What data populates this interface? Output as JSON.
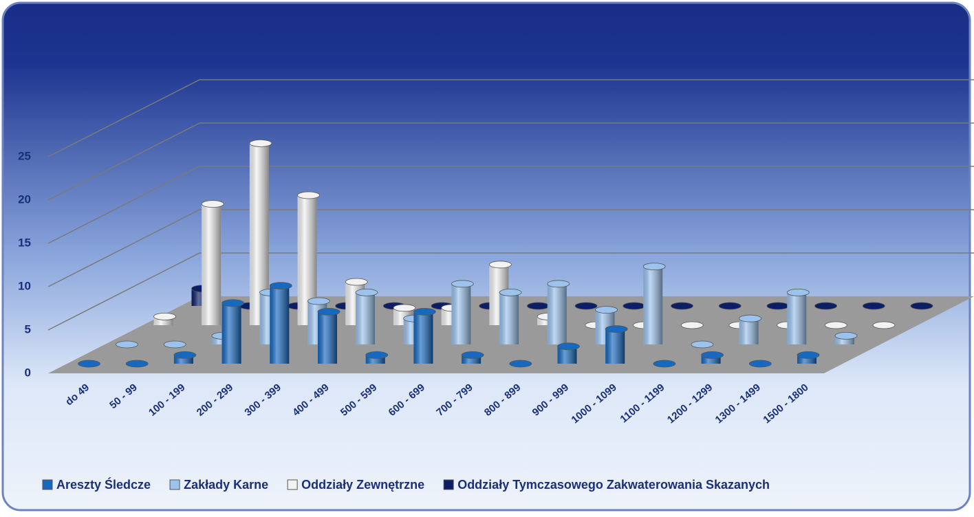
{
  "chart_data": {
    "type": "bar3d",
    "categories": [
      "do 49",
      "50 - 99",
      "100 - 199",
      "200 - 299",
      "300 - 399",
      "400 - 499",
      "500 - 599",
      "600 - 699",
      "700 - 799",
      "800 - 899",
      "900 - 999",
      "1000 - 1099",
      "1100 - 1199",
      "1200 - 1299",
      "1300 - 1499",
      "1500 - 1800"
    ],
    "series": [
      {
        "name": "Areszty Śledcze",
        "color": "#1769c0",
        "values": [
          0,
          0,
          1,
          7,
          9,
          6,
          1,
          6,
          1,
          0,
          2,
          4,
          0,
          1,
          0,
          1
        ]
      },
      {
        "name": "Zakłady Karne",
        "color": "#9cc3ee",
        "values": [
          0,
          0,
          1,
          6,
          5,
          6,
          3,
          7,
          6,
          7,
          4,
          9,
          0,
          3,
          6,
          1
        ]
      },
      {
        "name": "Oddziały Zewnętrzne",
        "color": "#f2f2f2",
        "values": [
          1,
          14,
          21,
          15,
          5,
          2,
          2,
          7,
          1,
          0,
          0,
          0,
          0,
          0,
          0,
          0
        ]
      },
      {
        "name": "Oddziały Tymczasowego Zakwaterowania Skazanych",
        "color": "#0c1f66",
        "values": [
          2,
          0,
          0,
          0,
          0,
          0,
          0,
          0,
          0,
          0,
          0,
          0,
          0,
          0,
          0,
          0
        ]
      }
    ],
    "ylim": [
      0,
      25
    ],
    "yticks": [
      0,
      5,
      10,
      15,
      20,
      25
    ],
    "grid": true
  }
}
